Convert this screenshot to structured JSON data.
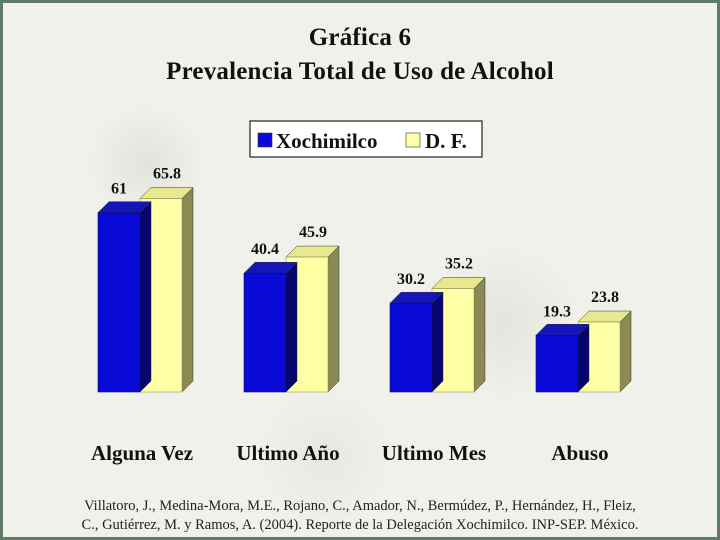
{
  "chart_data": {
    "type": "bar",
    "title": "Gráfica 6",
    "subtitle": "Prevalencia Total de Uso de Alcohol",
    "categories": [
      "Alguna Vez",
      "Ultimo Año",
      "Ultimo Mes",
      "Abuso"
    ],
    "series": [
      {
        "name": "Xochimilco",
        "values": [
          61,
          40.4,
          30.2,
          19.3
        ],
        "value_labels": [
          "61",
          "40.4",
          "30.2",
          "19.3"
        ],
        "color": "#0a0ad8"
      },
      {
        "name": "D. F.",
        "values": [
          65.8,
          45.9,
          35.2,
          23.8
        ],
        "value_labels": [
          "65.8",
          "45.9",
          "35.2",
          "23.8"
        ],
        "color": "#ffffa6"
      }
    ],
    "ylim": [
      0,
      70
    ],
    "style": "3d-bars",
    "grid": false,
    "legend_position": "top-center"
  },
  "citation": {
    "line1": "Villatoro, J., Medina-Mora, M.E., Rojano, C., Amador, N., Bermúdez, P., Hernández, H., Fleiz,",
    "line2": "C., Gutiérrez, M. y Ramos, A. (2004). Reporte de la Delegación Xochimilco. INP-SEP. México."
  },
  "colors": {
    "border": "#5f7a66",
    "background": "#f1f1ec"
  }
}
